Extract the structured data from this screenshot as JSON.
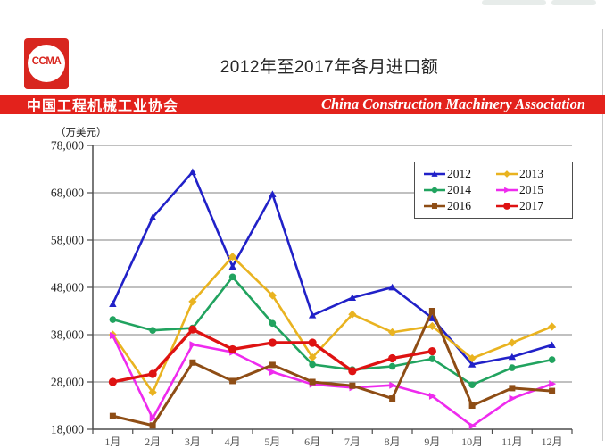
{
  "header": {
    "logo_text": "CCMA",
    "title": "2012年至2017年各月进口额",
    "banner": {
      "left": "中国工程机械工业协会",
      "right": "China Construction Machinery Association",
      "bg_color": "#e3221c"
    }
  },
  "chart_data": {
    "type": "line",
    "title": "2012年至2017年各月进口额",
    "unit_label": "（万美元）",
    "categories": [
      "1月",
      "2月",
      "3月",
      "4月",
      "5月",
      "6月",
      "7月",
      "8月",
      "9月",
      "10月",
      "11月",
      "12月"
    ],
    "ylim": [
      18000,
      78000
    ],
    "ytick_labels": [
      "78,000",
      "68,000",
      "58,000",
      "48,000",
      "38,000",
      "28,000",
      "18,000"
    ],
    "grid": "horizontal",
    "legend_position": "top-right",
    "axis_color": "#4d4d4d",
    "grid_color": "#808080",
    "series": [
      {
        "name": "2012",
        "color": "#2121c8",
        "marker": "triangle",
        "values": [
          44500,
          62800,
          72400,
          52400,
          67700,
          42100,
          45800,
          48000,
          41500,
          31700,
          33300,
          35800
        ]
      },
      {
        "name": "2013",
        "color": "#e9b320",
        "marker": "diamond",
        "values": [
          38000,
          25800,
          45000,
          54500,
          46300,
          33200,
          42300,
          38500,
          39800,
          33000,
          36300,
          39700
        ]
      },
      {
        "name": "2014",
        "color": "#21a35f",
        "marker": "circle",
        "values": [
          41200,
          38900,
          39400,
          50200,
          40400,
          31700,
          30600,
          31300,
          32900,
          27400,
          31000,
          32700
        ]
      },
      {
        "name": "2015",
        "color": "#ee2bee",
        "marker": "arrow",
        "values": [
          37800,
          20300,
          35900,
          34300,
          30100,
          27500,
          26800,
          27300,
          25000,
          18700,
          24500,
          27600
        ]
      },
      {
        "name": "2016",
        "color": "#8e4d15",
        "marker": "square",
        "values": [
          20800,
          18800,
          32100,
          28200,
          31600,
          28000,
          27200,
          24500,
          43000,
          23000,
          26700,
          26100
        ]
      },
      {
        "name": "2017",
        "color": "#de1212",
        "marker": "circle-big",
        "values": [
          28000,
          29700,
          39100,
          34900,
          36300,
          36300,
          30300,
          33000,
          34500,
          null,
          null,
          null
        ]
      }
    ]
  }
}
